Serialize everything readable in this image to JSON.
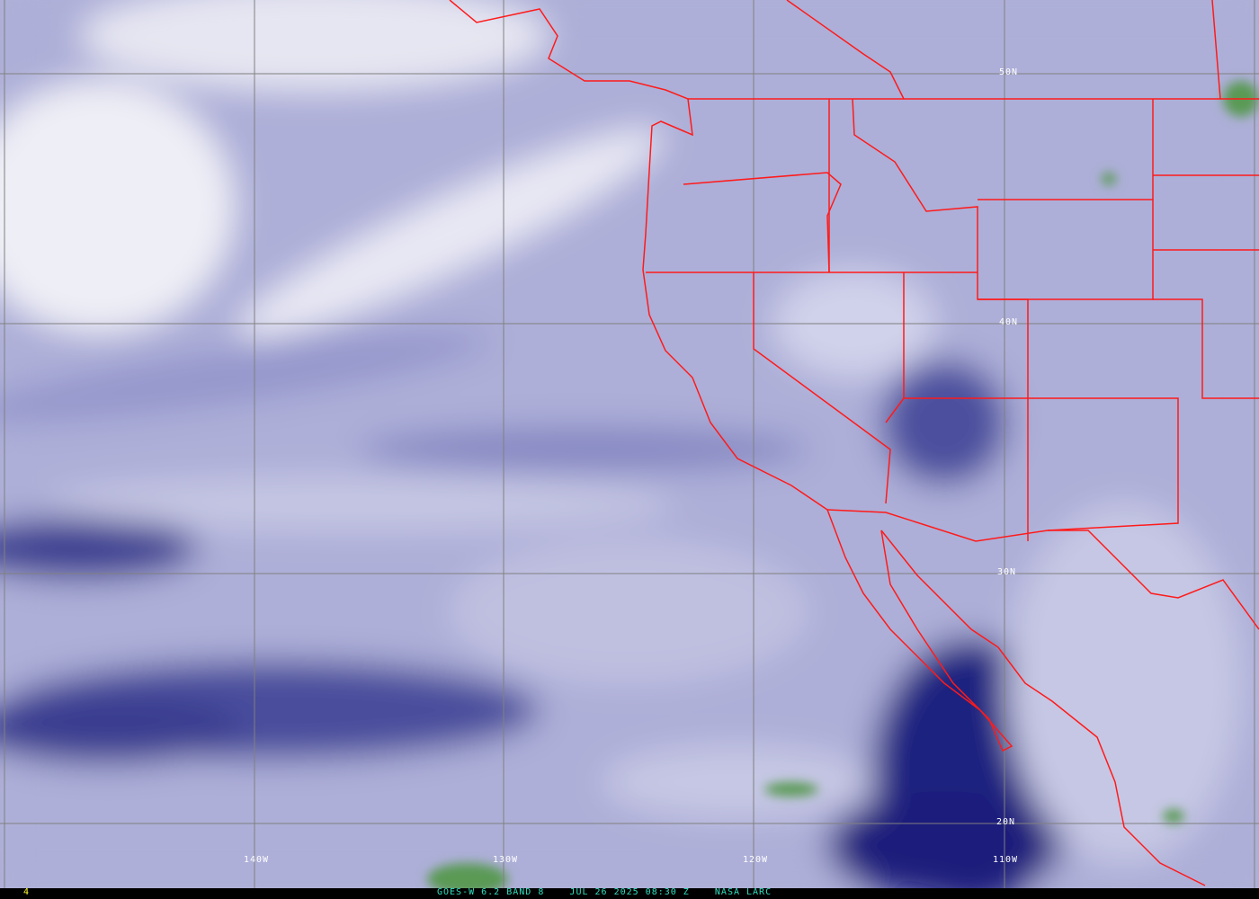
{
  "image": {
    "satellite": "GOES-W",
    "channel": "6.2",
    "band": "BAND 8",
    "date": "JUL 26 2025",
    "time": "08:30 Z",
    "source": "NASA LARC",
    "frame_number": "4"
  },
  "caption": "GOES-W 6.2 BAND 8    JUL 26 2025 08:30 Z    NASA LARC",
  "latitude_labels": [
    "50N",
    "40N",
    "30N",
    "20N"
  ],
  "longitude_labels": [
    "140W",
    "130W",
    "120W",
    "110W"
  ],
  "colors": {
    "borders": "#ff1a1a",
    "grid": "#808080",
    "moist": "#2a2c84",
    "dry": "#f0f0f8",
    "cloud_tops": "#4f9a4f",
    "caption": "#30e0c0",
    "frame_number": "#ffff33"
  }
}
